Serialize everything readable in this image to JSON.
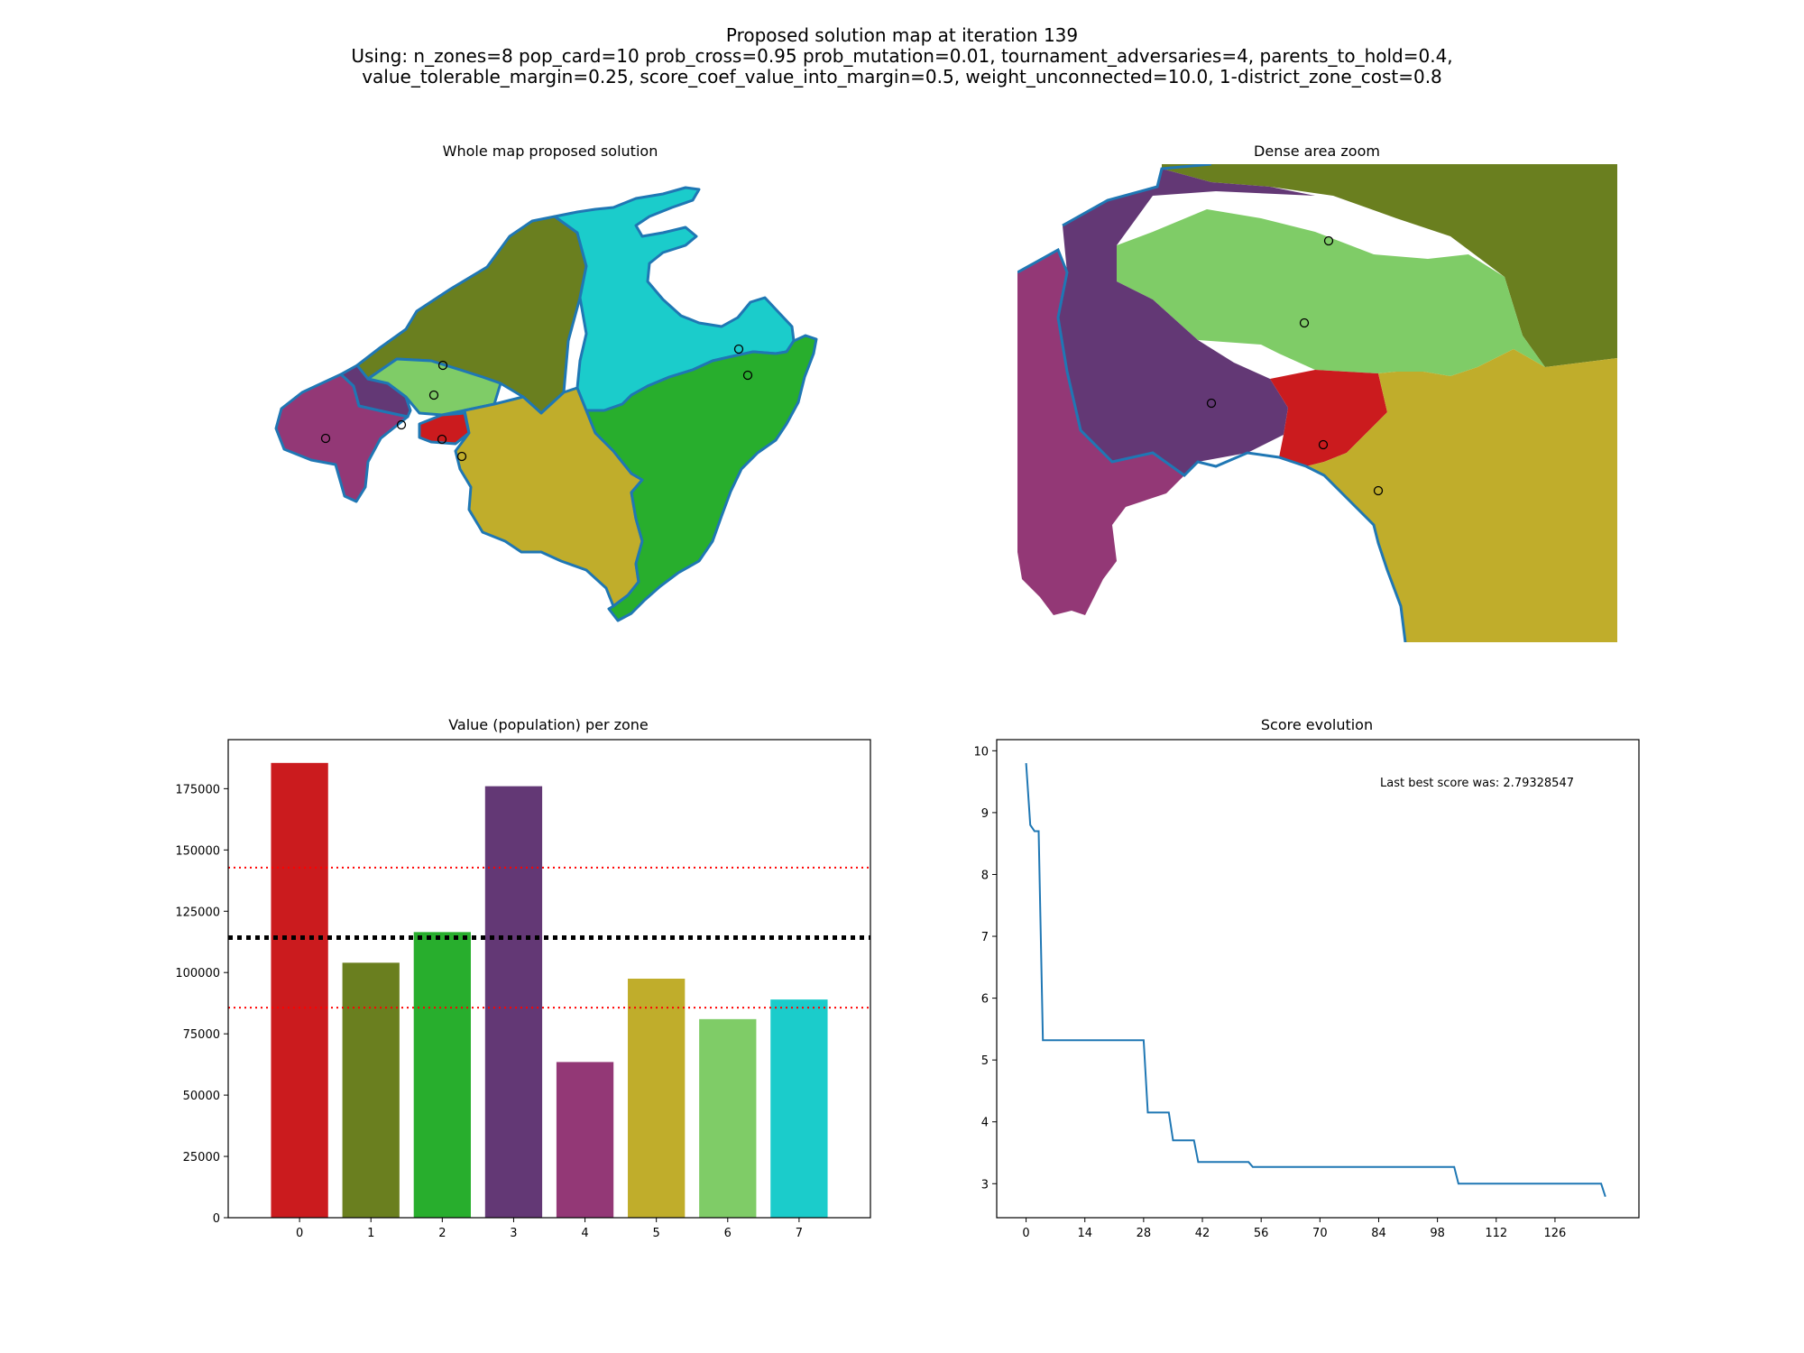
{
  "figure": {
    "title_lines": [
      "Proposed solution map at iteration 139",
      "Using: n_zones=8 pop_card=10 prob_cross=0.95 prob_mutation=0.01, tournament_adversaries=4, parents_to_hold=0.4,",
      "value_tolerable_margin=0.25, score_coef_value_into_margin=0.5, weight_unconnected=10.0, 1-district_zone_cost=0.8"
    ]
  },
  "panels": {
    "whole_map_title": "Whole map proposed solution",
    "zoom_map_title": "Dense area zoom"
  },
  "zone_colors": [
    "#cb1b1e",
    "#6a7f1f",
    "#28ae2d",
    "#633875",
    "#933876",
    "#c0ad2b",
    "#7fcc67",
    "#1bcccb"
  ],
  "chart_data": [
    {
      "type": "bar",
      "title": "Value (population) per zone",
      "categories": [
        "0",
        "1",
        "2",
        "3",
        "4",
        "5",
        "6",
        "7"
      ],
      "values": [
        185500,
        104000,
        116500,
        176000,
        63500,
        97500,
        81000,
        89000
      ],
      "ylim": [
        0,
        195000
      ],
      "yticks": [
        0,
        25000,
        50000,
        75000,
        100000,
        125000,
        150000,
        175000
      ],
      "reference_lines": [
        {
          "value": 114250,
          "color": "#000000",
          "style": "dotted-thick"
        },
        {
          "value": 142800,
          "color": "#ff0000",
          "style": "dotted"
        },
        {
          "value": 85700,
          "color": "#ff0000",
          "style": "dotted"
        }
      ]
    },
    {
      "type": "line",
      "title": "Score evolution",
      "annotation": "Last best score was: 2.79328547",
      "color": "#1f77b4",
      "xlim": [
        -7,
        146
      ],
      "ylim": [
        2.45,
        10.18
      ],
      "xticks": [
        0,
        14,
        28,
        42,
        56,
        70,
        84,
        98,
        112,
        126
      ],
      "yticks": [
        3,
        4,
        5,
        6,
        7,
        8,
        9,
        10
      ],
      "points": [
        [
          0,
          9.8
        ],
        [
          1,
          8.8
        ],
        [
          2,
          8.7
        ],
        [
          3,
          8.7
        ],
        [
          4,
          5.32
        ],
        [
          28,
          5.32
        ],
        [
          29,
          4.15
        ],
        [
          34,
          4.15
        ],
        [
          35,
          3.7
        ],
        [
          40,
          3.7
        ],
        [
          41,
          3.35
        ],
        [
          53,
          3.35
        ],
        [
          54,
          3.27
        ],
        [
          102,
          3.27
        ],
        [
          103,
          3.0
        ],
        [
          137,
          3.0
        ],
        [
          138,
          2.79
        ]
      ]
    }
  ]
}
